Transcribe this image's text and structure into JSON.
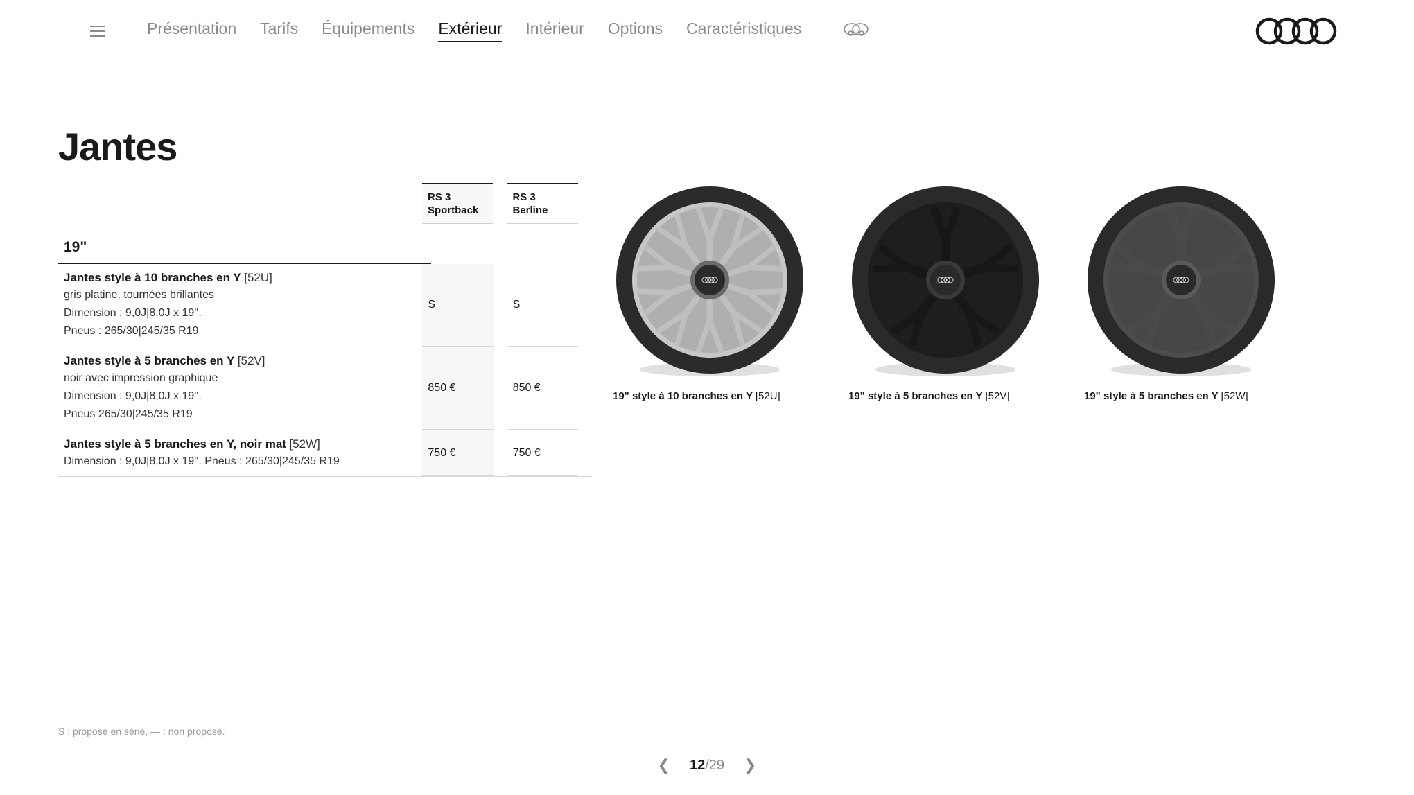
{
  "nav": {
    "items": [
      {
        "label": "Présentation",
        "active": false
      },
      {
        "label": "Tarifs",
        "active": false
      },
      {
        "label": "Équipements",
        "active": false
      },
      {
        "label": "Extérieur",
        "active": true
      },
      {
        "label": "Intérieur",
        "active": false
      },
      {
        "label": "Options",
        "active": false
      },
      {
        "label": "Caractéristiques",
        "active": false
      }
    ]
  },
  "page": {
    "title": "Jantes",
    "footnote": "S : proposé en série, — : non proposé.",
    "pager": {
      "current": "12",
      "total": "29",
      "sep": "/"
    }
  },
  "table": {
    "columns": [
      {
        "label": "RS 3 Sportback"
      },
      {
        "label": "RS 3 Berline"
      }
    ],
    "size_heading": "19\"",
    "rows": [
      {
        "title": "Jantes style à 10 branches en Y",
        "code": "[52U]",
        "details": [
          "gris platine, tournées brillantes",
          "Dimension : 9,0J|8,0J x 19''.",
          "Pneus : 265/30|245/35 R19"
        ],
        "values": [
          "S",
          "S"
        ]
      },
      {
        "title": "Jantes style à 5 branches en Y",
        "code": "[52V]",
        "details": [
          "noir avec impression graphique",
          "Dimension : 9,0J|8,0J x 19''.",
          "Pneus 265/30|245/35 R19"
        ],
        "values": [
          "850 €",
          "850 €"
        ]
      },
      {
        "title": "Jantes style à 5 branches en Y, noir mat",
        "code": "[52W]",
        "details": [
          "Dimension : 9,0J|8,0J x 19''. Pneus : 265/30|245/35 R19"
        ],
        "values": [
          "750 €",
          "750 €"
        ]
      }
    ]
  },
  "wheels": [
    {
      "caption": "19\" style à 10 branches en Y",
      "code": "[52U]",
      "style": {
        "tire_color": "#2b2b2b",
        "rim_color": "#c7c7c7",
        "spoke_color": "#bfbfbf",
        "hub_color": "#6a6a6a",
        "spokes": 10,
        "spoke_style": "y-split",
        "spoke_width": 9
      }
    },
    {
      "caption": "19\" style à 5 branches en Y",
      "code": "[52V]",
      "style": {
        "tire_color": "#2a2a2a",
        "rim_color": "#1d1d1d",
        "spoke_color": "#171717",
        "hub_color": "#3a3a3a",
        "spokes": 5,
        "spoke_style": "y-split",
        "spoke_width": 13
      }
    },
    {
      "caption": "19\" style à 5 branches en Y",
      "code": "[52W]",
      "style": {
        "tire_color": "#2a2a2a",
        "rim_color": "#4d4d4d",
        "spoke_color": "#4a4a4a",
        "hub_color": "#5a5a5a",
        "spokes": 5,
        "spoke_style": "y-split",
        "spoke_width": 13
      }
    }
  ],
  "brand": "Audi",
  "colors": {
    "text": "#1a1a1a",
    "muted": "#8a8a8a",
    "divider": "#d8d8d8",
    "alt_bg": "#f6f6f6"
  }
}
